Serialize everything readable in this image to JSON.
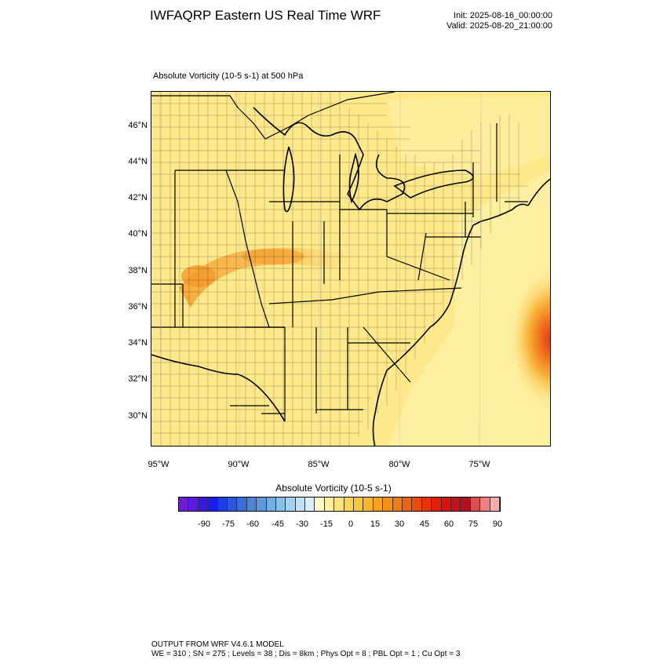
{
  "header": {
    "title": "IWFAQRP Eastern US Real Time WRF",
    "init": "Init: 2025-08-16_00:00:00",
    "valid": "Valid: 2025-08-20_21:00:00"
  },
  "field": {
    "title": "Absolute Vorticity   (10-5 s-1)     at   500 hPa"
  },
  "map": {
    "lat_labels": [
      "46°N",
      "44°N",
      "42°N",
      "40°N",
      "38°N",
      "36°N",
      "34°N",
      "32°N",
      "30°N"
    ],
    "lon_labels": [
      "95°W",
      "90°W",
      "85°W",
      "80°W",
      "75°W"
    ],
    "colors": {
      "background_fill": "#fde989",
      "ocean_fill": "#fdf0a6",
      "ridge_orange": "#f7a63a",
      "hurricane_red": "#e3301f",
      "lines": "#000000"
    }
  },
  "colorbar": {
    "title": "Absolute Vorticity  (10-5 s-1)",
    "tick_labels": [
      "-90",
      "-75",
      "-60",
      "-45",
      "-30",
      "-15",
      "0",
      "15",
      "30",
      "45",
      "60",
      "75",
      "90"
    ],
    "colors": [
      "#6a1fd1",
      "#5a1ae0",
      "#3a16ec",
      "#1c1cf2",
      "#1e3ee6",
      "#2a57dc",
      "#3a6ed6",
      "#4b84d8",
      "#5d98dc",
      "#72aee2",
      "#88c0e8",
      "#a3d2ef",
      "#bfe1f4",
      "#d8eef8",
      "#fff8c8",
      "#fff0a0",
      "#fee37a",
      "#fdd555",
      "#fdc73a",
      "#fbb52a",
      "#f9a21e",
      "#f78e17",
      "#f47910",
      "#f0620c",
      "#ec4b0a",
      "#e83508",
      "#e51f06",
      "#de1010",
      "#c80f1a",
      "#b01224",
      "#d85050",
      "#ee8080",
      "#ffaaaa"
    ]
  },
  "footer": {
    "line1": "OUTPUT FROM WRF V4.6.1 MODEL",
    "line2": "WE = 310 ; SN = 275 ; Levels = 38 ; Dis = 8km ; Phys Opt = 8 ; PBL Opt = 1 ; Cu Opt = 3"
  }
}
